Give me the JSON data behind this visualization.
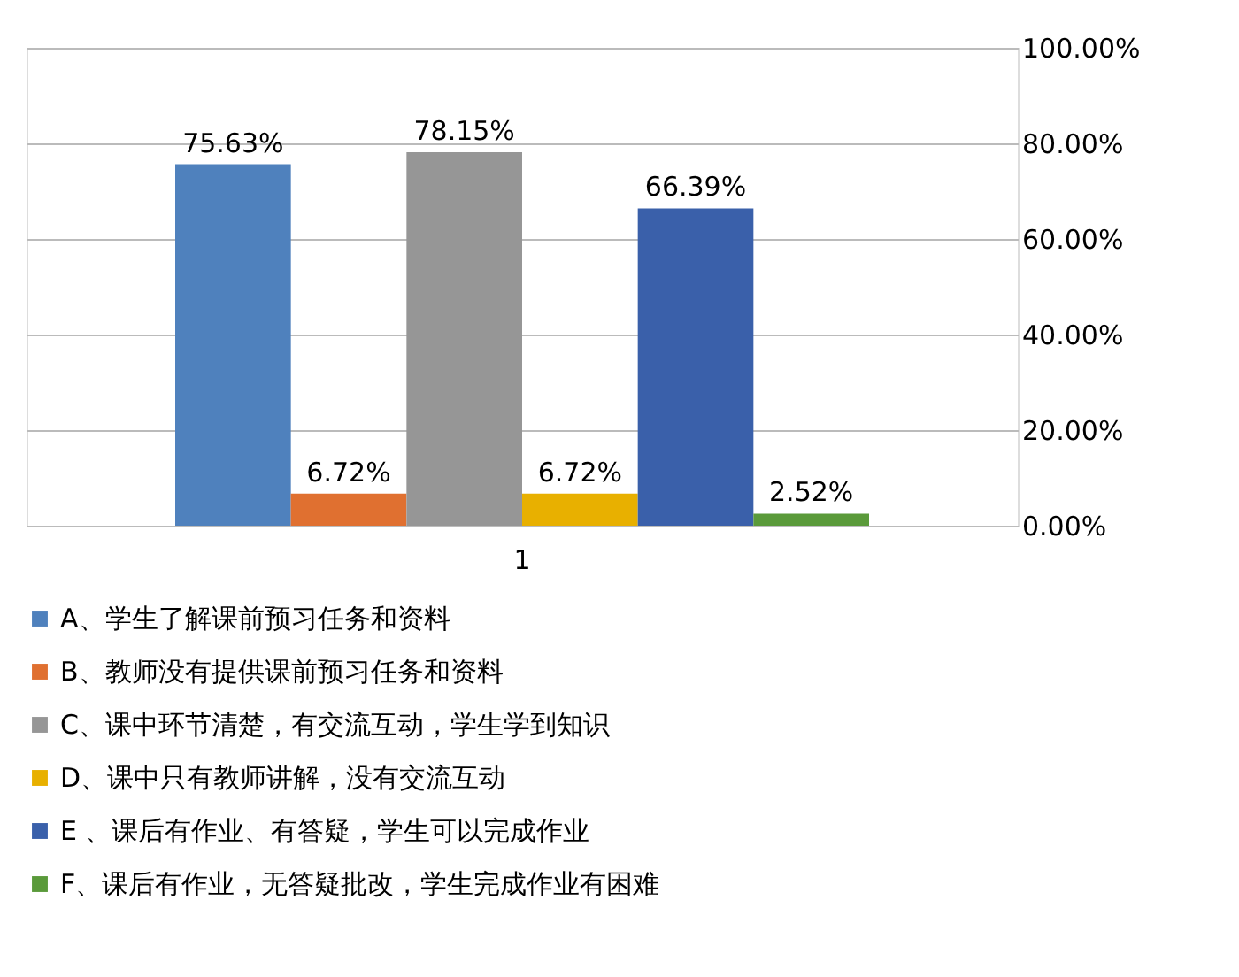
{
  "chart_data": {
    "type": "bar",
    "categories": [
      "1"
    ],
    "series": [
      {
        "name": "A、学生了解课前预习任务和资料",
        "color": "#4f81bd",
        "values": [
          75.63
        ],
        "value_labels": [
          "75.63%"
        ]
      },
      {
        "name": "B、教师没有提供课前预习任务和资料",
        "color": "#e07030",
        "values": [
          6.72
        ],
        "value_labels": [
          "6.72%"
        ]
      },
      {
        "name": "C、课中环节清楚，有交流互动，学生学到知识",
        "color": "#969696",
        "values": [
          78.15
        ],
        "value_labels": [
          "78.15%"
        ]
      },
      {
        "name": "D、课中只有教师讲解，没有交流互动",
        "color": "#e8b000",
        "values": [
          6.72
        ],
        "value_labels": [
          "6.72%"
        ]
      },
      {
        "name": "E 、课后有作业、有答疑，学生可以完成作业",
        "color": "#3a60aa",
        "values": [
          66.39
        ],
        "value_labels": [
          "66.39%"
        ]
      },
      {
        "name": "F、课后有作业，无答疑批改，学生完成作业有困难",
        "color": "#5a9a3a",
        "values": [
          2.52
        ],
        "value_labels": [
          "2.52%"
        ]
      }
    ],
    "ylim": [
      0,
      100
    ],
    "yticks": [
      {
        "value": 0,
        "label": "0.00%"
      },
      {
        "value": 20,
        "label": "20.00%"
      },
      {
        "value": 40,
        "label": "40.00%"
      },
      {
        "value": 60,
        "label": "60.00%"
      },
      {
        "value": 80,
        "label": "80.00%"
      },
      {
        "value": 100,
        "label": "100.00%"
      }
    ],
    "grid": "y",
    "legend": "bottom"
  }
}
